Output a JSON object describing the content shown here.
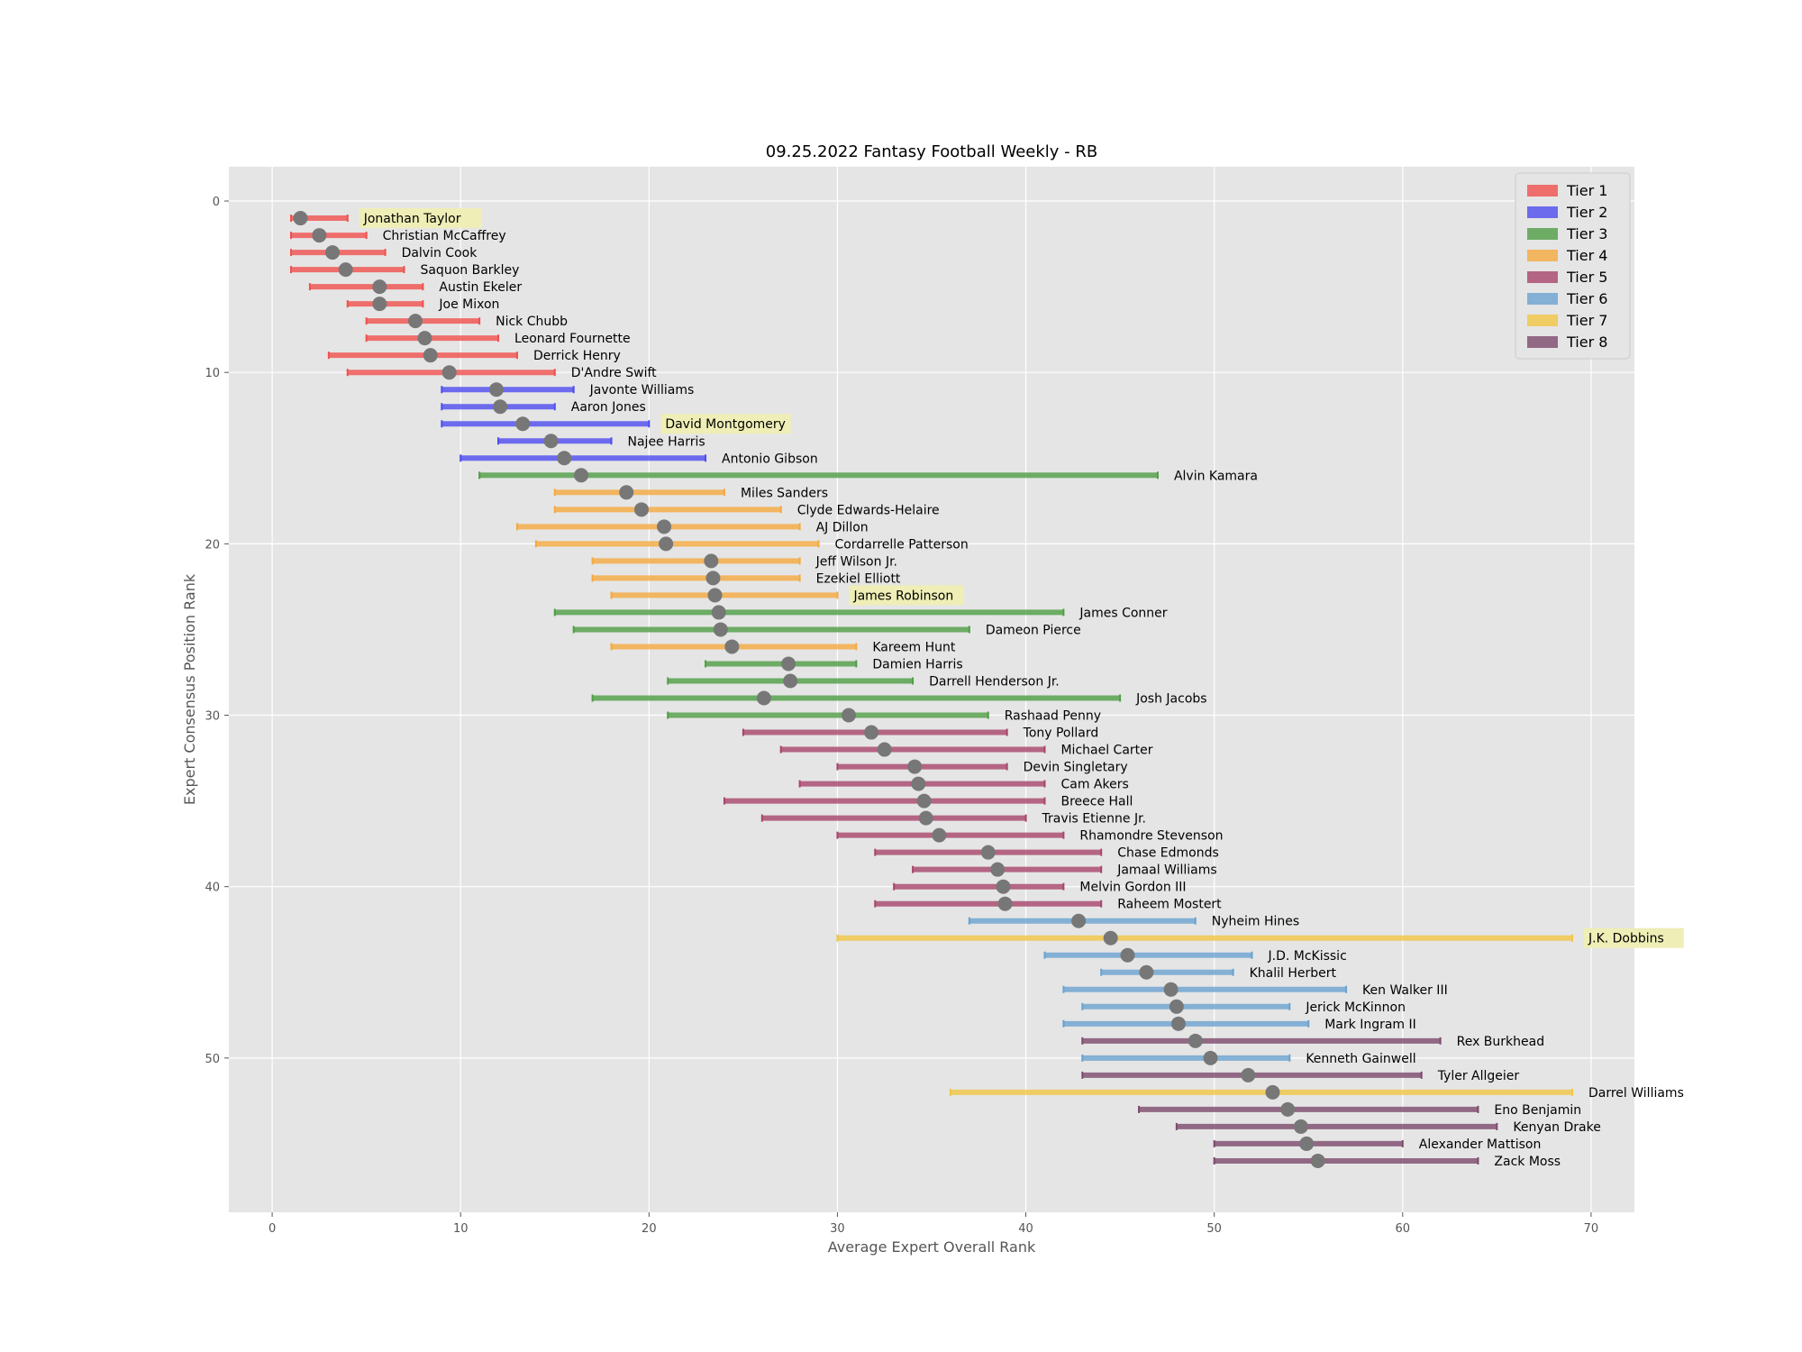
{
  "chart_data": {
    "type": "range-dot",
    "title": "09.25.2022 Fantasy Football Weekly - RB",
    "xlabel": "Average Expert Overall Rank",
    "ylabel": "Expert Consensus Position Rank",
    "xlim": [
      -2.3,
      72.3
    ],
    "ylim": [
      59,
      -2
    ],
    "xticks": [
      0,
      10,
      20,
      30,
      40,
      50,
      60,
      70
    ],
    "yticks": [
      0,
      10,
      20,
      30,
      40,
      50
    ],
    "grid": true,
    "legend_position": "top-right",
    "tiers": [
      {
        "name": "Tier 1",
        "color": "#f0504e"
      },
      {
        "name": "Tier 2",
        "color": "#4e4cf0"
      },
      {
        "name": "Tier 3",
        "color": "#4f9e45"
      },
      {
        "name": "Tier 4",
        "color": "#f5a93f"
      },
      {
        "name": "Tier 5",
        "color": "#a8456a"
      },
      {
        "name": "Tier 6",
        "color": "#6aa2cf"
      },
      {
        "name": "Tier 7",
        "color": "#f1c644"
      },
      {
        "name": "Tier 8",
        "color": "#7d4a6d"
      }
    ],
    "highlight_color": "#eeeeb6",
    "players": [
      {
        "name": "Jonathan Taylor",
        "rank": 1,
        "avg": 1.5,
        "min": 1,
        "max": 4,
        "tier": 1,
        "highlight": true
      },
      {
        "name": "Christian McCaffrey",
        "rank": 2,
        "avg": 2.5,
        "min": 1,
        "max": 5,
        "tier": 1,
        "highlight": false
      },
      {
        "name": "Dalvin Cook",
        "rank": 3,
        "avg": 3.2,
        "min": 1,
        "max": 6,
        "tier": 1,
        "highlight": false
      },
      {
        "name": "Saquon Barkley",
        "rank": 4,
        "avg": 3.9,
        "min": 1,
        "max": 7,
        "tier": 1,
        "highlight": false
      },
      {
        "name": "Austin Ekeler",
        "rank": 5,
        "avg": 5.7,
        "min": 2,
        "max": 8,
        "tier": 1,
        "highlight": false
      },
      {
        "name": "Joe Mixon",
        "rank": 6,
        "avg": 5.7,
        "min": 4,
        "max": 8,
        "tier": 1,
        "highlight": false
      },
      {
        "name": "Nick Chubb",
        "rank": 7,
        "avg": 7.6,
        "min": 5,
        "max": 11,
        "tier": 1,
        "highlight": false
      },
      {
        "name": "Leonard Fournette",
        "rank": 8,
        "avg": 8.1,
        "min": 5,
        "max": 12,
        "tier": 1,
        "highlight": false
      },
      {
        "name": "Derrick Henry",
        "rank": 9,
        "avg": 8.4,
        "min": 3,
        "max": 13,
        "tier": 1,
        "highlight": false
      },
      {
        "name": "D'Andre Swift",
        "rank": 10,
        "avg": 9.4,
        "min": 4,
        "max": 15,
        "tier": 1,
        "highlight": false
      },
      {
        "name": "Javonte Williams",
        "rank": 11,
        "avg": 11.9,
        "min": 9,
        "max": 16,
        "tier": 2,
        "highlight": false
      },
      {
        "name": "Aaron Jones",
        "rank": 12,
        "avg": 12.1,
        "min": 9,
        "max": 15,
        "tier": 2,
        "highlight": false
      },
      {
        "name": "David Montgomery",
        "rank": 13,
        "avg": 13.3,
        "min": 9,
        "max": 20,
        "tier": 2,
        "highlight": true
      },
      {
        "name": "Najee Harris",
        "rank": 14,
        "avg": 14.8,
        "min": 12,
        "max": 18,
        "tier": 2,
        "highlight": false
      },
      {
        "name": "Antonio Gibson",
        "rank": 15,
        "avg": 15.5,
        "min": 10,
        "max": 23,
        "tier": 2,
        "highlight": false
      },
      {
        "name": "Alvin Kamara",
        "rank": 16,
        "avg": 16.4,
        "min": 11,
        "max": 47,
        "tier": 3,
        "highlight": false
      },
      {
        "name": "Miles Sanders",
        "rank": 17,
        "avg": 18.8,
        "min": 15,
        "max": 24,
        "tier": 4,
        "highlight": false
      },
      {
        "name": "Clyde Edwards-Helaire",
        "rank": 18,
        "avg": 19.6,
        "min": 15,
        "max": 27,
        "tier": 4,
        "highlight": false
      },
      {
        "name": "AJ Dillon",
        "rank": 19,
        "avg": 20.8,
        "min": 13,
        "max": 28,
        "tier": 4,
        "highlight": false
      },
      {
        "name": "Cordarrelle Patterson",
        "rank": 20,
        "avg": 20.9,
        "min": 14,
        "max": 29,
        "tier": 4,
        "highlight": false
      },
      {
        "name": "Jeff Wilson Jr.",
        "rank": 21,
        "avg": 23.3,
        "min": 17,
        "max": 28,
        "tier": 4,
        "highlight": false
      },
      {
        "name": "Ezekiel Elliott",
        "rank": 22,
        "avg": 23.4,
        "min": 17,
        "max": 28,
        "tier": 4,
        "highlight": false
      },
      {
        "name": "James Robinson",
        "rank": 23,
        "avg": 23.5,
        "min": 18,
        "max": 30,
        "tier": 4,
        "highlight": true
      },
      {
        "name": "James Conner",
        "rank": 24,
        "avg": 23.7,
        "min": 15,
        "max": 42,
        "tier": 3,
        "highlight": false
      },
      {
        "name": "Dameon Pierce",
        "rank": 25,
        "avg": 23.8,
        "min": 16,
        "max": 37,
        "tier": 3,
        "highlight": false
      },
      {
        "name": "Kareem Hunt",
        "rank": 26,
        "avg": 24.4,
        "min": 18,
        "max": 31,
        "tier": 4,
        "highlight": false
      },
      {
        "name": "Damien Harris",
        "rank": 27,
        "avg": 27.4,
        "min": 23,
        "max": 31,
        "tier": 3,
        "highlight": false
      },
      {
        "name": "Darrell Henderson Jr.",
        "rank": 28,
        "avg": 27.5,
        "min": 21,
        "max": 34,
        "tier": 3,
        "highlight": false
      },
      {
        "name": "Josh Jacobs",
        "rank": 29,
        "avg": 26.1,
        "min": 17,
        "max": 45,
        "tier": 3,
        "highlight": false
      },
      {
        "name": "Rashaad Penny",
        "rank": 30,
        "avg": 30.6,
        "min": 21,
        "max": 38,
        "tier": 3,
        "highlight": false
      },
      {
        "name": "Tony Pollard",
        "rank": 31,
        "avg": 31.8,
        "min": 25,
        "max": 39,
        "tier": 5,
        "highlight": false
      },
      {
        "name": "Michael Carter",
        "rank": 32,
        "avg": 32.5,
        "min": 27,
        "max": 41,
        "tier": 5,
        "highlight": false
      },
      {
        "name": "Devin Singletary",
        "rank": 33,
        "avg": 34.1,
        "min": 30,
        "max": 39,
        "tier": 5,
        "highlight": false
      },
      {
        "name": "Cam Akers",
        "rank": 34,
        "avg": 34.3,
        "min": 28,
        "max": 41,
        "tier": 5,
        "highlight": false
      },
      {
        "name": "Breece Hall",
        "rank": 35,
        "avg": 34.6,
        "min": 24,
        "max": 41,
        "tier": 5,
        "highlight": false
      },
      {
        "name": "Travis Etienne Jr.",
        "rank": 36,
        "avg": 34.7,
        "min": 26,
        "max": 40,
        "tier": 5,
        "highlight": false
      },
      {
        "name": "Rhamondre Stevenson",
        "rank": 37,
        "avg": 35.4,
        "min": 30,
        "max": 42,
        "tier": 5,
        "highlight": false
      },
      {
        "name": "Chase Edmonds",
        "rank": 38,
        "avg": 38.0,
        "min": 32,
        "max": 44,
        "tier": 5,
        "highlight": false
      },
      {
        "name": "Jamaal Williams",
        "rank": 39,
        "avg": 38.5,
        "min": 34,
        "max": 44,
        "tier": 5,
        "highlight": false
      },
      {
        "name": "Melvin Gordon III",
        "rank": 40,
        "avg": 38.8,
        "min": 33,
        "max": 42,
        "tier": 5,
        "highlight": false
      },
      {
        "name": "Raheem Mostert",
        "rank": 41,
        "avg": 38.9,
        "min": 32,
        "max": 44,
        "tier": 5,
        "highlight": false
      },
      {
        "name": "Nyheim Hines",
        "rank": 42,
        "avg": 42.8,
        "min": 37,
        "max": 49,
        "tier": 6,
        "highlight": false
      },
      {
        "name": "J.K. Dobbins",
        "rank": 43,
        "avg": 44.5,
        "min": 30,
        "max": 69,
        "tier": 7,
        "highlight": true
      },
      {
        "name": "J.D. McKissic",
        "rank": 44,
        "avg": 45.4,
        "min": 41,
        "max": 52,
        "tier": 6,
        "highlight": false
      },
      {
        "name": "Khalil Herbert",
        "rank": 45,
        "avg": 46.4,
        "min": 44,
        "max": 51,
        "tier": 6,
        "highlight": false
      },
      {
        "name": "Ken Walker III",
        "rank": 46,
        "avg": 47.7,
        "min": 42,
        "max": 57,
        "tier": 6,
        "highlight": false
      },
      {
        "name": "Jerick McKinnon",
        "rank": 47,
        "avg": 48.0,
        "min": 43,
        "max": 54,
        "tier": 6,
        "highlight": false
      },
      {
        "name": "Mark Ingram II",
        "rank": 48,
        "avg": 48.1,
        "min": 42,
        "max": 55,
        "tier": 6,
        "highlight": false
      },
      {
        "name": "Rex Burkhead",
        "rank": 49,
        "avg": 49.0,
        "min": 43,
        "max": 62,
        "tier": 8,
        "highlight": false
      },
      {
        "name": "Kenneth Gainwell",
        "rank": 50,
        "avg": 49.8,
        "min": 43,
        "max": 54,
        "tier": 6,
        "highlight": false
      },
      {
        "name": "Tyler Allgeier",
        "rank": 51,
        "avg": 51.8,
        "min": 43,
        "max": 61,
        "tier": 8,
        "highlight": false
      },
      {
        "name": "Darrel Williams",
        "rank": 52,
        "avg": 53.1,
        "min": 36,
        "max": 69,
        "tier": 7,
        "highlight": false
      },
      {
        "name": "Eno Benjamin",
        "rank": 53,
        "avg": 53.9,
        "min": 46,
        "max": 64,
        "tier": 8,
        "highlight": false
      },
      {
        "name": "Kenyan Drake",
        "rank": 54,
        "avg": 54.6,
        "min": 48,
        "max": 65,
        "tier": 8,
        "highlight": false
      },
      {
        "name": "Alexander Mattison",
        "rank": 55,
        "avg": 54.9,
        "min": 50,
        "max": 60,
        "tier": 8,
        "highlight": false
      },
      {
        "name": "Zack Moss",
        "rank": 56,
        "avg": 55.5,
        "min": 50,
        "max": 64,
        "tier": 8,
        "highlight": false
      }
    ]
  }
}
